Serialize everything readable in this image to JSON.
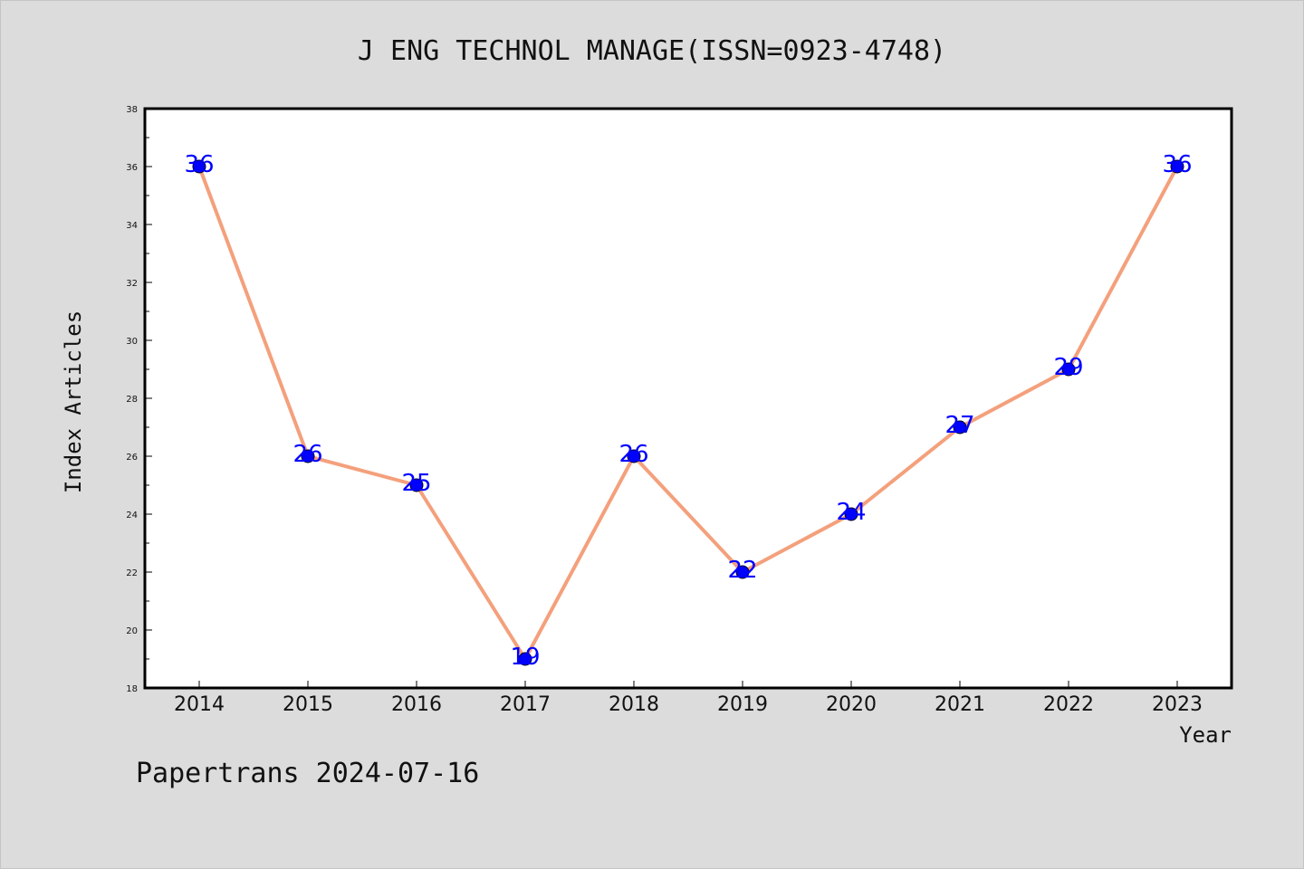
{
  "footer": "Papertrans 2024-07-16",
  "colors": {
    "background": "#dcdcdc",
    "plot_bg": "#ffffff",
    "line": "#f4a07c",
    "marker": "#0000ff",
    "label": "#0000ff"
  },
  "chart_data": {
    "type": "line",
    "title": "J ENG TECHNOL MANAGE(ISSN=0923-4748)",
    "xlabel": "Year",
    "ylabel": "Index Articles",
    "x": [
      "2014",
      "2015",
      "2016",
      "2017",
      "2018",
      "2019",
      "2020",
      "2021",
      "2022",
      "2023"
    ],
    "series": [
      {
        "values": [
          36,
          26,
          25,
          19,
          26,
          22,
          24,
          27,
          29,
          36
        ]
      }
    ],
    "data_labels": [
      "36",
      "26",
      "25",
      "19",
      "26",
      "22",
      "24",
      "27",
      "29",
      "36"
    ],
    "ylim": [
      18,
      38
    ],
    "yticks": [
      "18",
      "20",
      "22",
      "24",
      "26",
      "28",
      "30",
      "32",
      "34",
      "36",
      "38"
    ],
    "grid": false,
    "legend": "none"
  }
}
